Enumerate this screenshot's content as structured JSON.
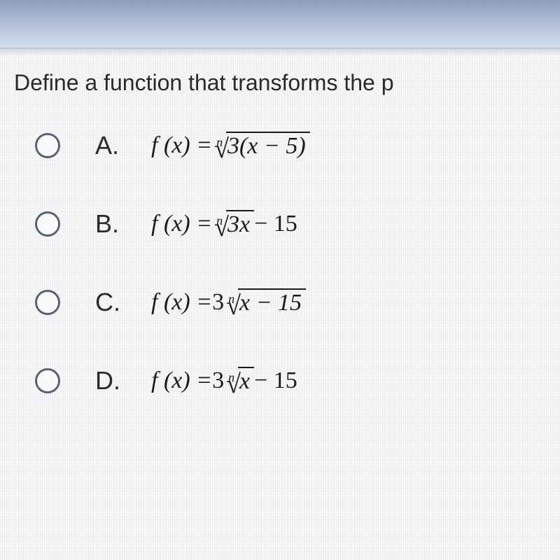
{
  "question": {
    "text": "Define a function that transforms the p"
  },
  "options": [
    {
      "letter": "A.",
      "func_label": "f (x) =",
      "root_index": "n",
      "coefficient": "",
      "radicand": "3(x − 5)",
      "after": ""
    },
    {
      "letter": "B.",
      "func_label": "f (x) =",
      "root_index": "n",
      "coefficient": "",
      "radicand": "3x",
      "after": " − 15"
    },
    {
      "letter": "C.",
      "func_label": "f (x) =",
      "root_index": "n",
      "coefficient": "3",
      "radicand": "x − 15",
      "after": ""
    },
    {
      "letter": "D.",
      "func_label": "f (x) =",
      "root_index": "n",
      "coefficient": "3",
      "radicand": "x",
      "after": " − 15"
    }
  ],
  "style": {
    "text_color": "#2a2a2a",
    "formula_color": "#1a1a1a",
    "radio_border": "#5a6070",
    "bg_top": "#8a9ab8",
    "bg_main": "#f8f8f8",
    "question_fontsize": 32,
    "option_fontsize": 36,
    "formula_fontsize": 34
  }
}
